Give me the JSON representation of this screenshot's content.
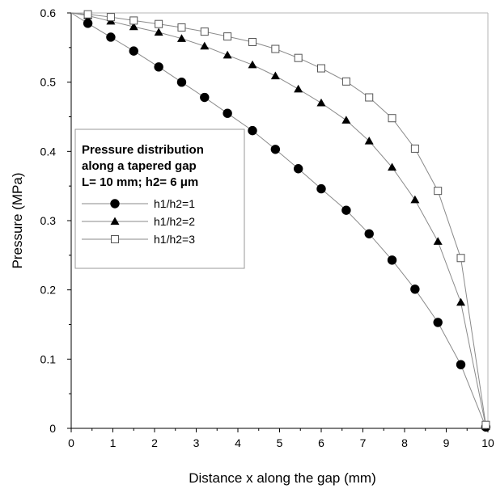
{
  "chart_data": {
    "type": "scatter",
    "xlabel": "Distance x along the gap (mm)",
    "ylabel": "Pressure (MPa)",
    "xlim": [
      0,
      10
    ],
    "ylim": [
      0,
      0.6
    ],
    "x_ticks": [
      "0",
      "1",
      "2",
      "3",
      "4",
      "5",
      "6",
      "7",
      "8",
      "9",
      "10"
    ],
    "y_ticks": [
      "0",
      "0.1",
      "0.2",
      "0.3",
      "0.4",
      "0.5",
      "0.6"
    ],
    "grid": false,
    "legend": {
      "position": "left-middle",
      "title_lines": [
        "Pressure distribution",
        "along a tapered gap",
        "L= 10 mm; h2= 6 μm"
      ]
    },
    "series": [
      {
        "name": "h1/h2=1",
        "marker": "filled-circle",
        "x": [
          0.4,
          0.95,
          1.5,
          2.1,
          2.65,
          3.2,
          3.75,
          4.35,
          4.9,
          5.45,
          6.0,
          6.6,
          7.15,
          7.7,
          8.25,
          8.8,
          9.35,
          9.95
        ],
        "y": [
          0.585,
          0.565,
          0.545,
          0.522,
          0.5,
          0.478,
          0.455,
          0.43,
          0.403,
          0.375,
          0.346,
          0.315,
          0.281,
          0.243,
          0.201,
          0.153,
          0.092,
          0.002
        ]
      },
      {
        "name": "h1/h2=2",
        "marker": "filled-triangle",
        "x": [
          0.4,
          0.95,
          1.5,
          2.1,
          2.65,
          3.2,
          3.75,
          4.35,
          4.9,
          5.45,
          6.0,
          6.6,
          7.15,
          7.7,
          8.25,
          8.8,
          9.35,
          9.95
        ],
        "y": [
          0.596,
          0.588,
          0.58,
          0.572,
          0.563,
          0.552,
          0.539,
          0.525,
          0.509,
          0.49,
          0.47,
          0.445,
          0.415,
          0.377,
          0.33,
          0.27,
          0.182,
          0.003
        ]
      },
      {
        "name": "h1/h2=3",
        "marker": "open-square",
        "x": [
          0.4,
          0.95,
          1.5,
          2.1,
          2.65,
          3.2,
          3.75,
          4.35,
          4.9,
          5.45,
          6.0,
          6.6,
          7.15,
          7.7,
          8.25,
          8.8,
          9.35,
          9.95
        ],
        "y": [
          0.598,
          0.594,
          0.589,
          0.584,
          0.579,
          0.573,
          0.566,
          0.558,
          0.548,
          0.535,
          0.52,
          0.501,
          0.478,
          0.448,
          0.404,
          0.343,
          0.246,
          0.005
        ]
      }
    ]
  }
}
